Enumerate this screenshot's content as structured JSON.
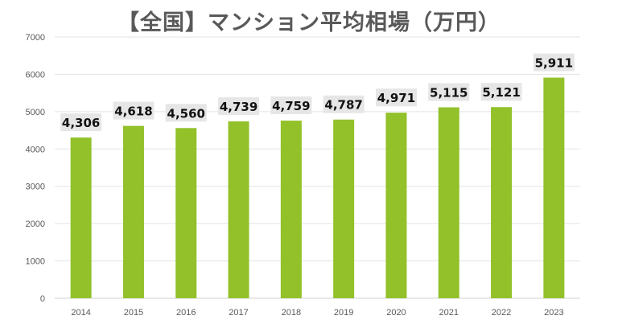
{
  "chart_data": {
    "type": "bar",
    "title": "【全国】マンション平均相場（万円）",
    "xlabel": "",
    "ylabel": "",
    "categories": [
      "2014",
      "2015",
      "2016",
      "2017",
      "2018",
      "2019",
      "2020",
      "2021",
      "2022",
      "2023"
    ],
    "values": [
      4306,
      4618,
      4560,
      4739,
      4759,
      4787,
      4971,
      5115,
      5121,
      5911
    ],
    "data_labels": [
      "4,306",
      "4,618",
      "4,560",
      "4,739",
      "4,759",
      "4,787",
      "4,971",
      "5,115",
      "5,121",
      "5,911"
    ],
    "ylim": [
      0,
      7000
    ],
    "yticks": [
      "0",
      "1000",
      "2000",
      "3000",
      "4000",
      "5000",
      "6000",
      "7000"
    ],
    "grid": true,
    "legend": "none",
    "colors": {
      "bar": "#92c12a",
      "label_bg": "#e6e6e6",
      "grid": "#e3e3e3",
      "title": "#595959"
    }
  }
}
